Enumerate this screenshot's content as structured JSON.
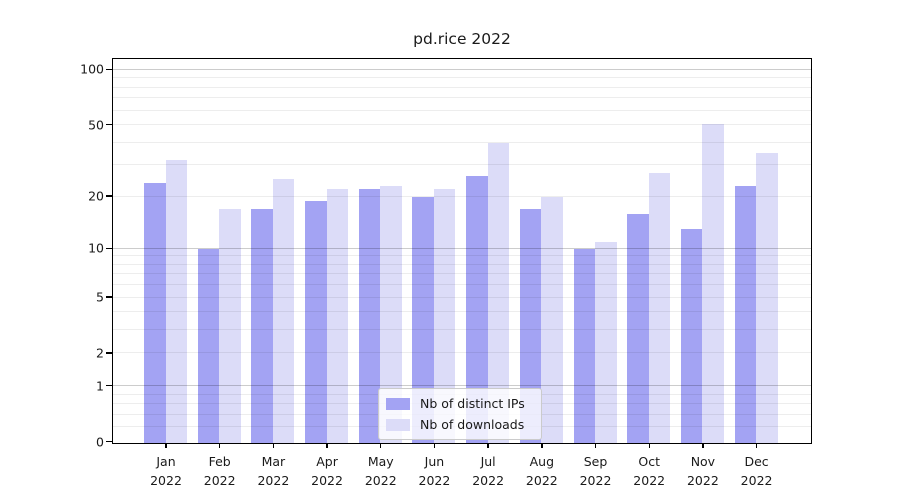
{
  "title": "pd.rice 2022",
  "legend": {
    "items": [
      {
        "label": "Nb of distinct IPs",
        "color": "#a3a3f3"
      },
      {
        "label": "Nb of downloads",
        "color": "#dcdcf8"
      }
    ]
  },
  "y_axis": {
    "tick_values": [
      100,
      50,
      20,
      10,
      5,
      2,
      1,
      0
    ],
    "major_gridlines": [
      1,
      10,
      100
    ],
    "minor_gridlines": [
      0.2,
      0.4,
      0.6,
      0.8,
      2,
      3,
      4,
      5,
      6,
      7,
      8,
      9,
      20,
      30,
      40,
      50,
      60,
      70,
      80,
      90
    ]
  },
  "x_axis": {
    "labels": [
      {
        "month": "Jan",
        "year": "2022"
      },
      {
        "month": "Feb",
        "year": "2022"
      },
      {
        "month": "Mar",
        "year": "2022"
      },
      {
        "month": "Apr",
        "year": "2022"
      },
      {
        "month": "May",
        "year": "2022"
      },
      {
        "month": "Jun",
        "year": "2022"
      },
      {
        "month": "Jul",
        "year": "2022"
      },
      {
        "month": "Aug",
        "year": "2022"
      },
      {
        "month": "Sep",
        "year": "2022"
      },
      {
        "month": "Oct",
        "year": "2022"
      },
      {
        "month": "Nov",
        "year": "2022"
      },
      {
        "month": "Dec",
        "year": "2022"
      }
    ]
  },
  "chart_data": {
    "type": "bar",
    "title": "pd.rice 2022",
    "categories": [
      "Jan 2022",
      "Feb 2022",
      "Mar 2022",
      "Apr 2022",
      "May 2022",
      "Jun 2022",
      "Jul 2022",
      "Aug 2022",
      "Sep 2022",
      "Oct 2022",
      "Nov 2022",
      "Dec 2022"
    ],
    "series": [
      {
        "name": "Nb of distinct IPs",
        "color": "#a3a3f3",
        "values": [
          24,
          10,
          17,
          19,
          22,
          20,
          26,
          17,
          10,
          16,
          13,
          23
        ]
      },
      {
        "name": "Nb of downloads",
        "color": "#dcdcf8",
        "values": [
          32,
          17,
          25,
          22,
          23,
          22,
          40,
          20,
          11,
          27,
          51,
          35
        ]
      }
    ],
    "xlabel": "",
    "ylabel": "",
    "yscale": "log1p",
    "yticks": [
      0,
      1,
      2,
      5,
      10,
      20,
      50,
      100
    ],
    "ylim": [
      0,
      113
    ],
    "grid": true,
    "legend_position": "lower center"
  }
}
